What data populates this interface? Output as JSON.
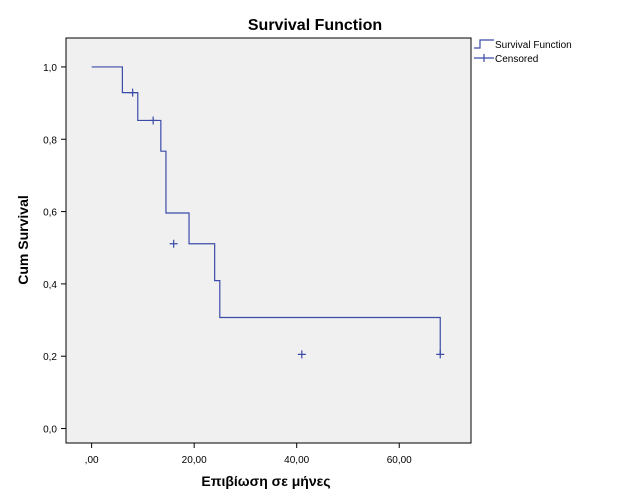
{
  "chart_data": {
    "type": "line",
    "title": "Survival Function",
    "xlabel": "Επιβίωση σε μήνες",
    "ylabel": "Cum Survival",
    "xlim": [
      -5,
      74
    ],
    "ylim": [
      -0.04,
      1.08
    ],
    "xticks": [
      0,
      20,
      40,
      60
    ],
    "xtick_labels": [
      ",00",
      "20,00",
      "40,00",
      "60,00"
    ],
    "yticks": [
      0,
      0.2,
      0.4,
      0.6,
      0.8,
      1.0
    ],
    "ytick_labels": [
      "0,0",
      "0,2",
      "0,4",
      "0,6",
      "0,8",
      "1,0"
    ],
    "grid": false,
    "legend_position": "top-right, outside plot",
    "colors": {
      "series": "#3b4ba8",
      "plot_bg": "#f0f0f0",
      "frame": "#000000"
    },
    "series": [
      {
        "name": "Survival Function",
        "step_x": [
          0,
          6,
          9,
          13.5,
          14.5,
          19,
          24,
          25,
          68
        ],
        "step_y": [
          1.0,
          0.929,
          0.852,
          0.767,
          0.596,
          0.511,
          0.409,
          0.307,
          0.205
        ]
      },
      {
        "name": "Censored",
        "x": [
          8,
          12,
          16,
          41,
          68
        ],
        "y": [
          0.929,
          0.852,
          0.511,
          0.205,
          0.205
        ]
      }
    ]
  }
}
